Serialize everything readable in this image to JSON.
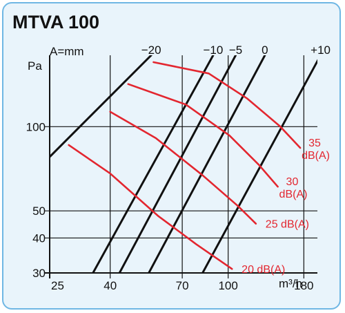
{
  "chart_data": {
    "type": "line",
    "title": "MTVA 100",
    "ylabel": "Pa",
    "xlabel": "m³/h",
    "x_scale": "log",
    "y_scale": "log",
    "xlim": [
      25,
      200
    ],
    "ylim": [
      30,
      180
    ],
    "x_ticks": [
      25,
      40,
      70,
      100,
      180
    ],
    "y_ticks": [
      30,
      40,
      50,
      100
    ],
    "grid": true,
    "damper_setting_label": "A=mm",
    "damper_lines": [
      {
        "label": "−20",
        "points": [
          [
            25,
            78
          ],
          [
            55,
            180
          ]
        ]
      },
      {
        "label": "−10",
        "points": [
          [
            35,
            30
          ],
          [
            89,
            180
          ]
        ]
      },
      {
        "label": "−5",
        "points": [
          [
            43,
            30
          ],
          [
            106,
            180
          ]
        ]
      },
      {
        "label": "0",
        "points": [
          [
            54,
            30
          ],
          [
            133,
            180
          ]
        ]
      },
      {
        "label": "+10",
        "points": [
          [
            82,
            30
          ],
          [
            205,
            180
          ]
        ]
      }
    ],
    "sound_curves": [
      {
        "label": "20 dB(A)",
        "points": [
          [
            29,
            86
          ],
          [
            40,
            68
          ],
          [
            58,
            48
          ],
          [
            78,
            38
          ],
          [
            103,
            31
          ]
        ]
      },
      {
        "label": "25 dB(A)",
        "points": [
          [
            40,
            113
          ],
          [
            57,
            91
          ],
          [
            82,
            67
          ],
          [
            108,
            52
          ],
          [
            124,
            45
          ]
        ]
      },
      {
        "label": "30 dB(A)",
        "points": [
          [
            46,
            142
          ],
          [
            72,
            120
          ],
          [
            101,
            93
          ],
          [
            127,
            73
          ],
          [
            147,
            61
          ]
        ]
      },
      {
        "label": "35 dB(A)",
        "points": [
          [
            56,
            170
          ],
          [
            86,
            155
          ],
          [
            116,
            126
          ],
          [
            150,
            100
          ],
          [
            175,
            84
          ]
        ]
      }
    ],
    "colors": {
      "grid": "#111111",
      "damper": "#111111",
      "sound": "#e3262f",
      "frame": "#6fb7e4",
      "background": "#e9f4fb"
    }
  }
}
